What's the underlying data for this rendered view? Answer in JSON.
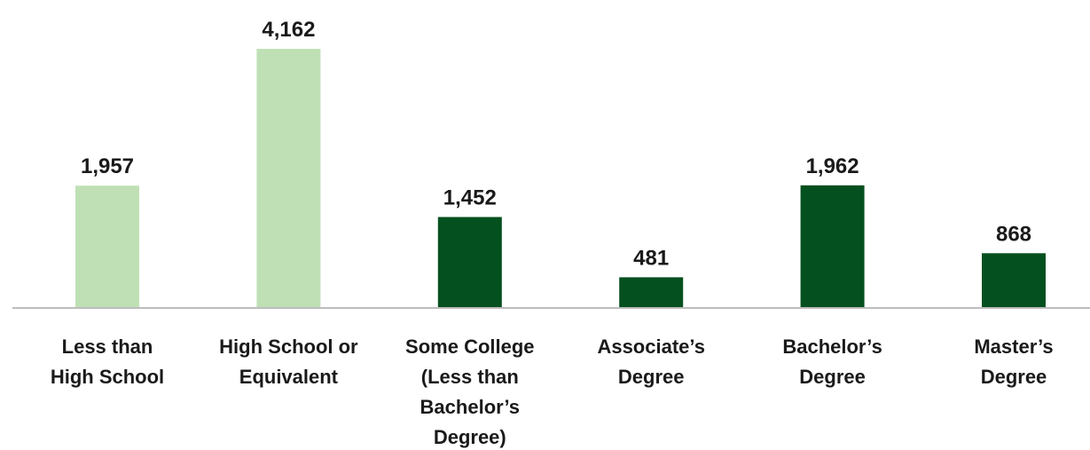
{
  "chart_data": {
    "type": "bar",
    "categories": [
      [
        "Less than",
        "High School"
      ],
      [
        "High School or",
        "Equivalent"
      ],
      [
        "Some College",
        "(Less than",
        "Bachelor’s",
        "Degree)"
      ],
      [
        "Associate’s",
        "Degree"
      ],
      [
        "Bachelor’s",
        "Degree"
      ],
      [
        "Master’s",
        "Degree"
      ]
    ],
    "values": [
      1957,
      4162,
      1452,
      481,
      1962,
      868
    ],
    "value_labels": [
      "1,957",
      "4,162",
      "1,452",
      "481",
      "1,962",
      "868"
    ],
    "bar_colors": [
      "#bfe0b5",
      "#bfe0b5",
      "#04501f",
      "#04501f",
      "#04501f",
      "#04501f"
    ],
    "ylim": [
      0,
      4162
    ],
    "grid": false,
    "axis_color": "#bdbdbd"
  }
}
